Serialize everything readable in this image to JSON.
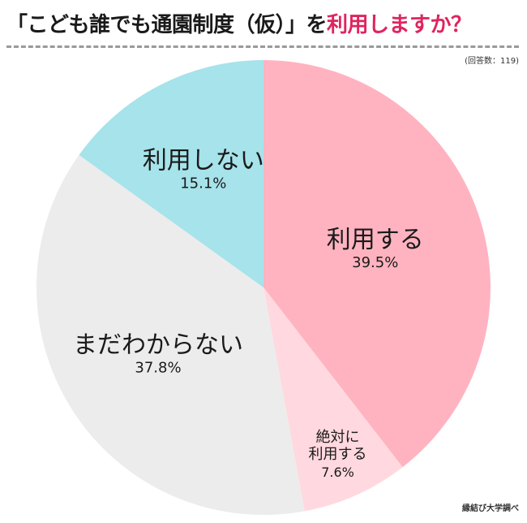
{
  "header": {
    "title_prefix": "「こども誰でも通園制度（仮）」を",
    "title_accent": "利用しますか？",
    "respondents": "(回答数：119)",
    "credit": "縁結び大学調べ"
  },
  "colors": {
    "accent": "#e0245e",
    "use": "#ffb3c0",
    "lean_use": "#ffd9df",
    "undecided": "#ececec",
    "not_use": "#a6e3ea"
  },
  "chart_data": {
    "type": "pie",
    "slices": [
      {
        "label": "利用する",
        "label_lines": [
          "利用する"
        ],
        "value": 39.5,
        "value_label": "39.5%",
        "color": "#ffb3c0"
      },
      {
        "label": "絶対に利用する",
        "label_lines": [
          "絶対に",
          "利用する"
        ],
        "value": 7.6,
        "value_label": "7.6%",
        "color": "#ffd9df"
      },
      {
        "label": "まだわからない",
        "label_lines": [
          "まだわからない"
        ],
        "value": 37.8,
        "value_label": "37.8%",
        "color": "#ececec"
      },
      {
        "label": "利用しない",
        "label_lines": [
          "利用しない"
        ],
        "value": 15.1,
        "value_label": "15.1%",
        "color": "#a6e3ea"
      }
    ]
  }
}
